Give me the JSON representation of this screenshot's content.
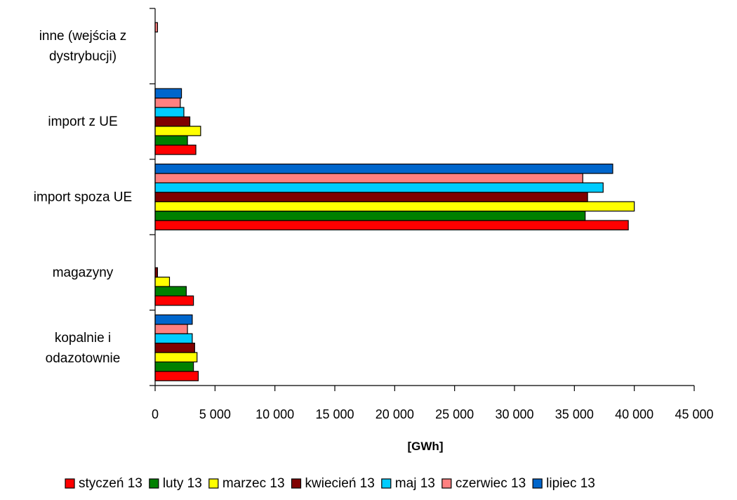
{
  "chart_data": {
    "type": "bar",
    "orientation": "horizontal",
    "xlabel": "[GWh]",
    "xlim": [
      0,
      45000
    ],
    "xticks": [
      "0",
      "5 000",
      "10 000",
      "15 000",
      "20 000",
      "25 000",
      "30 000",
      "35 000",
      "40 000",
      "45 000"
    ],
    "grid": false,
    "legend_position": "bottom",
    "categories": [
      {
        "lines": [
          "kopalnie i",
          "odazotownie"
        ]
      },
      {
        "lines": [
          "magazyny"
        ]
      },
      {
        "lines": [
          "import spoza UE"
        ]
      },
      {
        "lines": [
          "import z UE"
        ]
      },
      {
        "lines": [
          "inne (wejścia z",
          "dystrybucji)"
        ]
      }
    ],
    "series": [
      {
        "name": "styczeń 13",
        "color": "#ff0000",
        "values": [
          3600,
          3200,
          39500,
          3400,
          0
        ]
      },
      {
        "name": "luty 13",
        "color": "#008000",
        "values": [
          3200,
          2600,
          35900,
          2700,
          0
        ]
      },
      {
        "name": "marzec 13",
        "color": "#ffff00",
        "values": [
          3500,
          1200,
          40000,
          3800,
          0
        ]
      },
      {
        "name": "kwiecień 13",
        "color": "#800000",
        "values": [
          3300,
          200,
          36100,
          2900,
          0
        ]
      },
      {
        "name": "maj 13",
        "color": "#00ccff",
        "values": [
          3100,
          0,
          37400,
          2400,
          0
        ]
      },
      {
        "name": "czerwiec 13",
        "color": "#ff8080",
        "values": [
          2700,
          0,
          35700,
          2100,
          200
        ]
      },
      {
        "name": "lipiec 13",
        "color": "#0066cc",
        "values": [
          3100,
          0,
          38200,
          2200,
          0
        ]
      }
    ]
  }
}
